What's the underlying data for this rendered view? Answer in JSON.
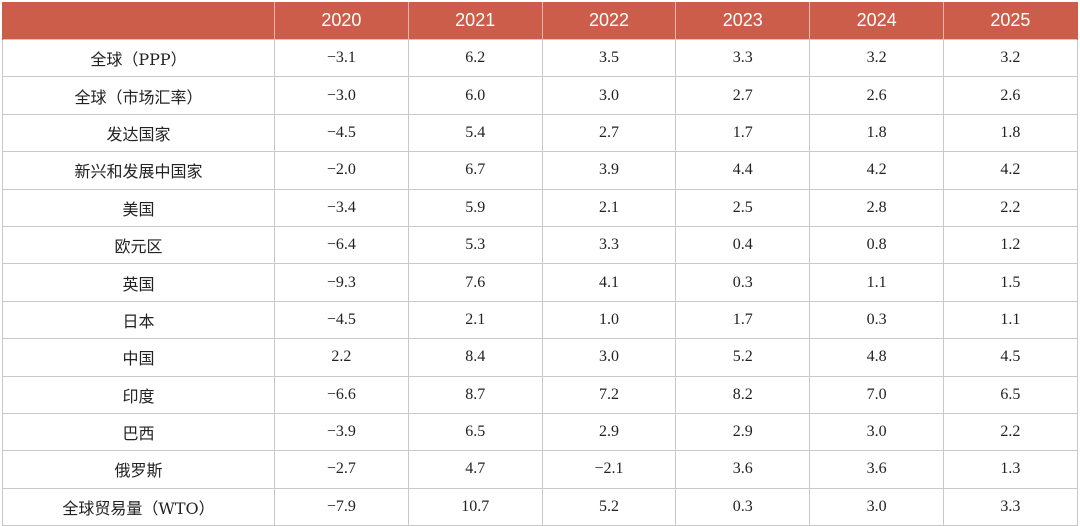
{
  "chart_data": {
    "type": "table",
    "columns": [
      "",
      "2020",
      "2021",
      "2022",
      "2023",
      "2024",
      "2025"
    ],
    "rows": [
      {
        "label": "全球（PPP）",
        "values": [
          "−3.1",
          "6.2",
          "3.5",
          "3.3",
          "3.2",
          "3.2"
        ]
      },
      {
        "label": "全球（市场汇率）",
        "values": [
          "−3.0",
          "6.0",
          "3.0",
          "2.7",
          "2.6",
          "2.6"
        ]
      },
      {
        "label": "发达国家",
        "values": [
          "−4.5",
          "5.4",
          "2.7",
          "1.7",
          "1.8",
          "1.8"
        ]
      },
      {
        "label": "新兴和发展中国家",
        "values": [
          "−2.0",
          "6.7",
          "3.9",
          "4.4",
          "4.2",
          "4.2"
        ]
      },
      {
        "label": "美国",
        "values": [
          "−3.4",
          "5.9",
          "2.1",
          "2.5",
          "2.8",
          "2.2"
        ]
      },
      {
        "label": "欧元区",
        "values": [
          "−6.4",
          "5.3",
          "3.3",
          "0.4",
          "0.8",
          "1.2"
        ]
      },
      {
        "label": "英国",
        "values": [
          "−9.3",
          "7.6",
          "4.1",
          "0.3",
          "1.1",
          "1.5"
        ]
      },
      {
        "label": "日本",
        "values": [
          "−4.5",
          "2.1",
          "1.0",
          "1.7",
          "0.3",
          "1.1"
        ]
      },
      {
        "label": "中国",
        "values": [
          "2.2",
          "8.4",
          "3.0",
          "5.2",
          "4.8",
          "4.5"
        ]
      },
      {
        "label": "印度",
        "values": [
          "−6.6",
          "8.7",
          "7.2",
          "8.2",
          "7.0",
          "6.5"
        ]
      },
      {
        "label": "巴西",
        "values": [
          "−3.9",
          "6.5",
          "2.9",
          "2.9",
          "3.0",
          "2.2"
        ]
      },
      {
        "label": "俄罗斯",
        "values": [
          "−2.7",
          "4.7",
          "−2.1",
          "3.6",
          "3.6",
          "1.3"
        ]
      },
      {
        "label": "全球贸易量（WTO）",
        "values": [
          "−7.9",
          "10.7",
          "5.2",
          "0.3",
          "3.0",
          "3.3"
        ]
      }
    ]
  },
  "colors": {
    "header_bg": "#cc5d4b",
    "header_text": "#ffffff",
    "grid": "#c9c9c9"
  }
}
